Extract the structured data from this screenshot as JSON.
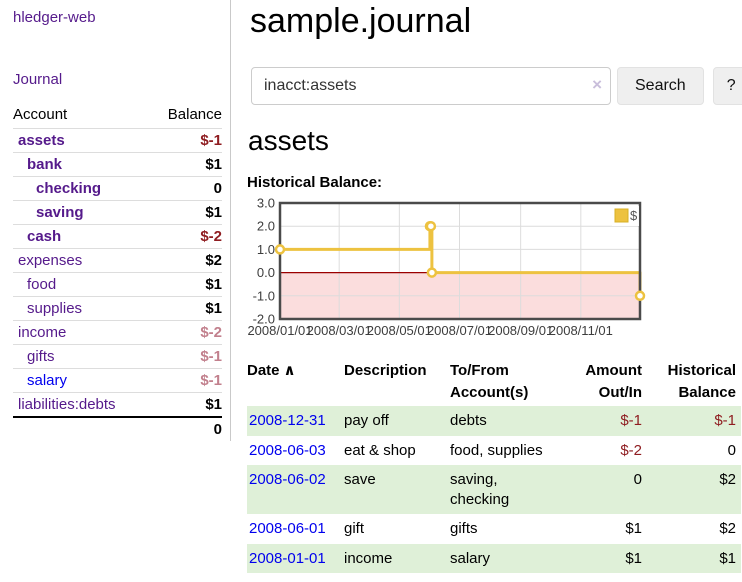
{
  "sidebar": {
    "brand": "hledger-web",
    "nav": [
      {
        "label": "Journal"
      }
    ],
    "accounts_table": {
      "headers": {
        "account": "Account",
        "balance": "Balance"
      },
      "rows": [
        {
          "name": "assets",
          "depth": 1,
          "bold": true,
          "link": "visited",
          "balance": "$-1",
          "balance_style": "neg-strong"
        },
        {
          "name": "bank",
          "depth": 2,
          "bold": true,
          "link": "visited",
          "balance": "$1",
          "balance_style": "pos"
        },
        {
          "name": "checking",
          "depth": 3,
          "bold": true,
          "link": "visited",
          "balance": "0",
          "balance_style": "pos"
        },
        {
          "name": "saving",
          "depth": 3,
          "bold": true,
          "link": "visited",
          "balance": "$1",
          "balance_style": "pos"
        },
        {
          "name": "cash",
          "depth": 2,
          "bold": true,
          "link": "visited",
          "balance": "$-2",
          "balance_style": "neg-strong"
        },
        {
          "name": "expenses",
          "depth": 1,
          "bold": false,
          "link": "visited",
          "balance": "$2",
          "balance_style": "pos"
        },
        {
          "name": "food",
          "depth": 2,
          "bold": false,
          "link": "visited",
          "balance": "$1",
          "balance_style": "pos"
        },
        {
          "name": "supplies",
          "depth": 2,
          "bold": false,
          "link": "visited",
          "balance": "$1",
          "balance_style": "pos"
        },
        {
          "name": "income",
          "depth": 1,
          "bold": false,
          "link": "visited",
          "balance": "$-2",
          "balance_style": "neg-soft"
        },
        {
          "name": "gifts",
          "depth": 2,
          "bold": false,
          "link": "visited",
          "balance": "$-1",
          "balance_style": "neg-soft"
        },
        {
          "name": "salary",
          "depth": 2,
          "bold": false,
          "link": "unvisited",
          "balance": "$-1",
          "balance_style": "neg-soft"
        },
        {
          "name": "liabilities:debts",
          "depth": 1,
          "bold": false,
          "link": "visited",
          "balance": "$1",
          "balance_style": "pos"
        }
      ],
      "total": "0"
    }
  },
  "header": {
    "title": "sample.journal"
  },
  "search": {
    "value": "inacct:assets",
    "clear_icon": "×",
    "button_label": "Search",
    "help_label": "?"
  },
  "account_page": {
    "title": "assets",
    "chart_label": "Historical Balance:"
  },
  "chart_data": {
    "type": "line",
    "step": true,
    "title": "Historical Balance",
    "xlabel": "",
    "ylabel": "",
    "ylim": [
      -2.0,
      3.0
    ],
    "yticks": [
      "3.0",
      "2.0",
      "1.0",
      "0.0",
      "-1.0",
      "-2.0"
    ],
    "ytick_values": [
      3,
      2,
      1,
      0,
      -1,
      -2
    ],
    "xlim_days": [
      0,
      365
    ],
    "xticks": [
      {
        "pos": 0,
        "label": "2008/01/01"
      },
      {
        "pos": 60,
        "label": "2008/03/01"
      },
      {
        "pos": 121,
        "label": "2008/05/01"
      },
      {
        "pos": 182,
        "label": "2008/07/01"
      },
      {
        "pos": 244,
        "label": "2008/09/01"
      },
      {
        "pos": 305,
        "label": "2008/11/01"
      }
    ],
    "grid": true,
    "legend": {
      "label": "$",
      "position": "top-right"
    },
    "series": [
      {
        "name": "$",
        "color": "#edc240",
        "points": [
          {
            "date": "2008-01-01",
            "x": 0,
            "y": 1
          },
          {
            "date": "2008-06-01",
            "x": 152,
            "y": 2
          },
          {
            "date": "2008-06-02",
            "x": 153,
            "y": 2
          },
          {
            "date": "2008-06-03",
            "x": 154,
            "y": 0
          },
          {
            "date": "2008-12-31",
            "x": 365,
            "y": -1
          }
        ]
      }
    ],
    "negative_band": {
      "from": -2,
      "to": 0,
      "fill": "#fbdddd",
      "zero_line_color": "#9b0000"
    }
  },
  "register_table": {
    "headers": {
      "date": "Date",
      "description": "Description",
      "accounts": "To/From Account(s)",
      "amount": "Amount Out/In",
      "balance": "Historical Balance"
    },
    "sort_icon": "∧",
    "rows": [
      {
        "date": "2008-12-31",
        "description": "pay off",
        "accounts": "debts",
        "amount": "$-1",
        "amount_negative": true,
        "balance": "$-1",
        "balance_negative": true,
        "stripe": true
      },
      {
        "date": "2008-06-03",
        "description": "eat & shop",
        "accounts": "food, supplies",
        "amount": "$-2",
        "amount_negative": true,
        "balance": "0",
        "balance_negative": false,
        "stripe": false
      },
      {
        "date": "2008-06-02",
        "description": "save",
        "accounts": "saving, checking",
        "amount": "0",
        "amount_negative": false,
        "balance": "$2",
        "balance_negative": false,
        "stripe": true
      },
      {
        "date": "2008-06-01",
        "description": "gift",
        "accounts": "gifts",
        "amount": "$1",
        "amount_negative": false,
        "balance": "$2",
        "balance_negative": false,
        "stripe": false
      },
      {
        "date": "2008-01-01",
        "description": "income",
        "accounts": "salary",
        "amount": "$1",
        "amount_negative": false,
        "balance": "$1",
        "balance_negative": false,
        "stripe": true
      }
    ]
  },
  "colors": {
    "link_visited": "#551a8b",
    "link_unvisited": "#0000ee",
    "negative_strong": "#8f1d21",
    "negative_soft": "#c2808d",
    "stripe_green": "#dff0d8",
    "chart_series": "#edc240",
    "chart_negative_band": "#fbdddd",
    "chart_zero_line": "#9b0000",
    "chart_border": "#4a4a4a"
  }
}
